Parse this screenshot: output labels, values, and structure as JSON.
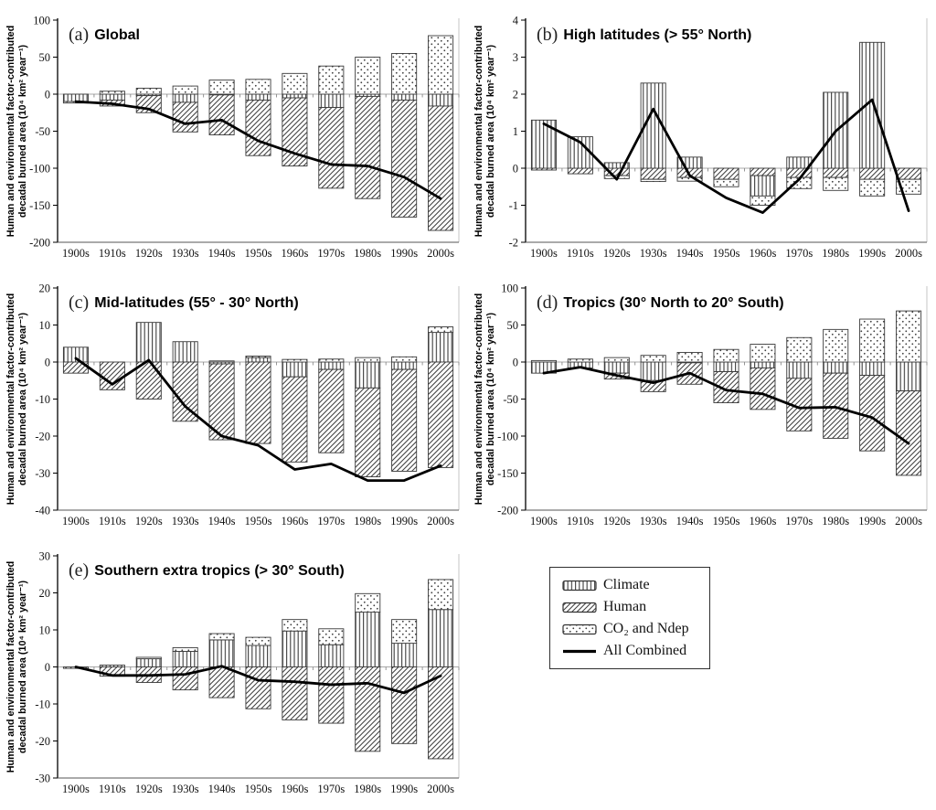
{
  "figure": {
    "ylabel_line1": "Human and environmental factor-contributed",
    "ylabel_line2": "decadal burned area (10⁴ km² year⁻¹)",
    "categories": [
      "1900s",
      "1910s",
      "1920s",
      "1930s",
      "1940s",
      "1950s",
      "1960s",
      "1970s",
      "1980s",
      "1990s",
      "2000s"
    ],
    "colors": {
      "ink": "#000000",
      "hatch": "#3d3d3d",
      "bar_stroke": "#3a3a3a",
      "zero_line": "#a8a8a8",
      "right_border": "#c4c4c4"
    }
  },
  "legend": {
    "position": "bottom-right",
    "items": [
      {
        "label": "Climate",
        "swatch": "climate-vertical-hatch"
      },
      {
        "label": "Human",
        "swatch": "human-diagonal-hatch"
      },
      {
        "label": "CO₂ and Ndep",
        "swatch": "co2-dotted"
      },
      {
        "label": "All Combined",
        "swatch": "solid-black-line"
      }
    ]
  },
  "chart_data": [
    {
      "type": "bar",
      "id": "a",
      "title_prefix": "(a)",
      "title": "Global",
      "xlabel": "",
      "ylabel": "Human and environmental factor-contributed decadal burned area (10⁴ km² year⁻¹)",
      "ylim": [
        -200,
        100
      ],
      "ystep": 50,
      "grid": false,
      "series": [
        {
          "name": "Climate",
          "key": "climate",
          "values": [
            -10,
            -8,
            -2,
            -11,
            -1,
            -8,
            -5,
            -18,
            -3,
            -8,
            -16
          ]
        },
        {
          "name": "Human",
          "key": "human",
          "values": [
            0,
            -8,
            -23,
            -40,
            -54,
            -75,
            -92,
            -109,
            -138,
            -158,
            -168
          ]
        },
        {
          "name": "CO₂ and Ndep",
          "key": "co2",
          "values": [
            -2,
            4,
            8,
            11,
            19,
            20,
            28,
            38,
            50,
            55,
            79
          ]
        }
      ],
      "line_series": {
        "name": "All Combined",
        "values": [
          -10,
          -13,
          -20,
          -40,
          -35,
          -63,
          -80,
          -95,
          -97,
          -112,
          -141
        ]
      }
    },
    {
      "type": "bar",
      "id": "b",
      "title_prefix": "(b)",
      "title": "High latitudes (> 55° North)",
      "xlabel": "",
      "ylabel": "Human and environmental factor-contributed decadal burned area (10⁴ km² year⁻¹)",
      "ylim": [
        -2,
        4
      ],
      "ystep": 1,
      "grid": false,
      "series": [
        {
          "name": "Human",
          "key": "human",
          "values": [
            -0.05,
            -0.15,
            -0.2,
            -0.3,
            -0.25,
            -0.3,
            -0.2,
            -0.25,
            -0.25,
            -0.3,
            -0.3
          ]
        },
        {
          "name": "Climate",
          "key": "climate",
          "values": [
            1.3,
            0.85,
            0.15,
            2.3,
            0.3,
            0,
            -0.55,
            0.3,
            2.05,
            3.4,
            0
          ]
        },
        {
          "name": "CO₂ and Ndep",
          "key": "co2",
          "values": [
            0,
            0,
            -0.08,
            -0.06,
            -0.1,
            -0.2,
            -0.25,
            -0.3,
            -0.35,
            -0.45,
            -0.4
          ]
        }
      ],
      "line_series": {
        "name": "All Combined",
        "values": [
          1.2,
          0.7,
          -0.3,
          1.6,
          -0.2,
          -0.8,
          -1.2,
          -0.3,
          1.0,
          1.85,
          -1.15
        ]
      }
    },
    {
      "type": "bar",
      "id": "c",
      "title_prefix": "(c)",
      "title": "Mid-latitudes (55° - 30° North)",
      "xlabel": "",
      "ylabel": "Human and environmental factor-contributed decadal burned area (10⁴ km² year⁻¹)",
      "ylim": [
        -40,
        20
      ],
      "ystep": 10,
      "grid": false,
      "series": [
        {
          "name": "Climate",
          "key": "climate",
          "values": [
            4,
            0,
            10.7,
            5.5,
            -0.5,
            1.2,
            -4,
            -2,
            -7,
            -2,
            8
          ]
        },
        {
          "name": "Human",
          "key": "human",
          "values": [
            -3,
            -7.5,
            -10,
            -16,
            -20.5,
            -22,
            -23,
            -22.5,
            -24,
            -27.5,
            -28.5
          ]
        },
        {
          "name": "CO₂ and Ndep",
          "key": "co2",
          "values": [
            0,
            0,
            0,
            0,
            0.3,
            0.4,
            0.7,
            0.8,
            1.2,
            1.4,
            1.5
          ]
        }
      ],
      "line_series": {
        "name": "All Combined",
        "values": [
          1,
          -6,
          0.5,
          -12,
          -20,
          -22.5,
          -29,
          -27.5,
          -32,
          -32,
          -28
        ]
      }
    },
    {
      "type": "bar",
      "id": "d",
      "title_prefix": "(d)",
      "title": "Tropics (30° North to 20° South)",
      "xlabel": "",
      "ylabel": "Human and environmental factor-contributed decadal burned area (10⁴ km² year⁻¹)",
      "ylim": [
        -200,
        100
      ],
      "ystep": 50,
      "grid": false,
      "series": [
        {
          "name": "Climate",
          "key": "climate",
          "values": [
            -15,
            -8,
            -15,
            -25,
            -1,
            -13,
            -8,
            -22,
            -15,
            -18,
            -39
          ]
        },
        {
          "name": "Human",
          "key": "human",
          "values": [
            0,
            0,
            -8,
            -15,
            -29,
            -42,
            -56,
            -71,
            -88,
            -102,
            -114
          ]
        },
        {
          "name": "CO₂ and Ndep",
          "key": "co2",
          "values": [
            2,
            4,
            6,
            9,
            13,
            17,
            24,
            33,
            44,
            58,
            69
          ]
        }
      ],
      "line_series": {
        "name": "All Combined",
        "values": [
          -15,
          -7,
          -18,
          -28,
          -15,
          -38,
          -43,
          -62,
          -61,
          -75,
          -110
        ]
      }
    },
    {
      "type": "bar",
      "id": "e",
      "title_prefix": "(e)",
      "title": "Southern extra tropics (> 30° South)",
      "xlabel": "",
      "ylabel": "Human and environmental factor-contributed decadal burned area (10⁴ km² year⁻¹)",
      "ylim": [
        -30,
        30
      ],
      "ystep": 10,
      "grid": false,
      "series": [
        {
          "name": "Climate",
          "key": "climate",
          "values": [
            0,
            0.5,
            2.2,
            4.2,
            7.3,
            5.8,
            9.7,
            6,
            14.8,
            6.4,
            15.5
          ]
        },
        {
          "name": "Human",
          "key": "human",
          "values": [
            -0.4,
            -2.5,
            -4.2,
            -6.2,
            -8.3,
            -11.3,
            -14.3,
            -15.2,
            -22.8,
            -20.7,
            -24.8
          ]
        },
        {
          "name": "CO₂ and Ndep",
          "key": "co2",
          "values": [
            0,
            0,
            0.4,
            1.0,
            1.7,
            2.2,
            3.1,
            4.3,
            5.0,
            6.4,
            8.1
          ]
        }
      ],
      "line_series": {
        "name": "All Combined",
        "values": [
          0,
          -2.3,
          -2.3,
          -2,
          0.2,
          -3.6,
          -4,
          -4.8,
          -4.4,
          -7,
          -2.4
        ]
      }
    }
  ]
}
